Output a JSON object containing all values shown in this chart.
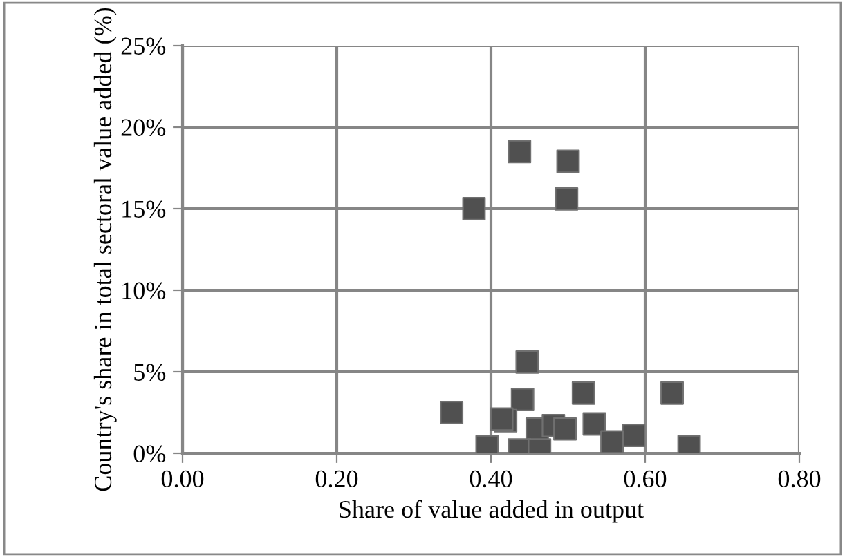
{
  "chart_data": {
    "type": "scatter",
    "xlabel": "Share of value added in output",
    "ylabel": "Country's share in total sectoral value added (%)",
    "series": [
      {
        "color": "#505050",
        "x": [
          0.437,
          0.5,
          0.498,
          0.378,
          0.447,
          0.52,
          0.635,
          0.441,
          0.349,
          0.419,
          0.414,
          0.46,
          0.481,
          0.496,
          0.534,
          0.585,
          0.557,
          0.395,
          0.437,
          0.463,
          0.657
        ],
        "values": [
          18.5,
          17.9,
          15.6,
          15.0,
          5.6,
          3.7,
          3.7,
          3.3,
          2.5,
          2.0,
          2.1,
          1.5,
          1.7,
          1.5,
          1.8,
          1.1,
          0.7,
          0.4,
          0.2,
          0.2,
          0.4
        ]
      }
    ],
    "marker": "square",
    "grid": true,
    "legend": false,
    "xlim": [
      0,
      0.8
    ],
    "xticks": [
      {
        "value": 0,
        "label": "0.00"
      },
      {
        "value": 0.2,
        "label": "0.20"
      },
      {
        "value": 0.4,
        "label": "0.40"
      },
      {
        "value": 0.6,
        "label": "0.60"
      },
      {
        "value": 0.8,
        "label": "0.80"
      }
    ],
    "ylim": [
      0,
      25
    ],
    "yticks": [
      {
        "value": 0,
        "label": "0%"
      },
      {
        "value": 5,
        "label": "5%"
      },
      {
        "value": 10,
        "label": "10%"
      },
      {
        "value": 15,
        "label": "15%"
      },
      {
        "value": 20,
        "label": "20%"
      },
      {
        "value": 25,
        "label": "25%"
      }
    ]
  }
}
